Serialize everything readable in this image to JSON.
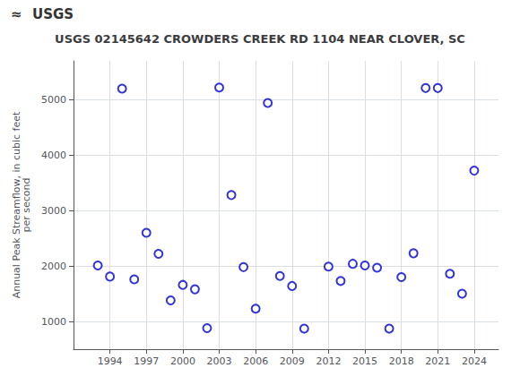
{
  "chart_data": {
    "type": "scatter",
    "title": "USGS 02145642 CROWDERS CREEK RD 1104 NEAR CLOVER, SC",
    "annotations": [
      "≈",
      "USGS"
    ],
    "ylabel": "Annual Peak Streamflow, in cubic feet\nper second",
    "x": [
      1993,
      1994,
      1995,
      1996,
      1997,
      1998,
      1999,
      2000,
      2001,
      2002,
      2003,
      2004,
      2005,
      2006,
      2007,
      2008,
      2009,
      2010,
      2012,
      2013,
      2014,
      2015,
      2016,
      2017,
      2018,
      2019,
      2020,
      2021,
      2022,
      2023,
      2024
    ],
    "values": [
      2010,
      1810,
      5200,
      1760,
      2600,
      2220,
      1380,
      1660,
      1580,
      880,
      5220,
      3280,
      1980,
      1230,
      4940,
      1820,
      1640,
      870,
      1990,
      1730,
      2040,
      2010,
      1970,
      870,
      1800,
      2230,
      5210,
      5210,
      1860,
      1500,
      3720
    ],
    "color": "#0000cc",
    "marker": "open circle",
    "xlim": [
      1991,
      2026
    ],
    "ylim": [
      500,
      5700
    ],
    "xticks": [
      1994,
      1997,
      2000,
      2003,
      2006,
      2009,
      2012,
      2015,
      2018,
      2021,
      2024
    ],
    "yticks": [
      1000,
      2000,
      3000,
      4000,
      5000
    ],
    "grid": true
  }
}
